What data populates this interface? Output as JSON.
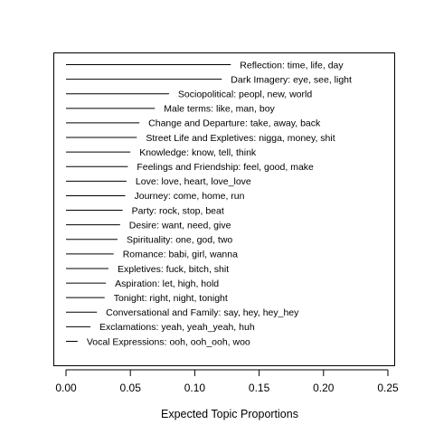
{
  "chart_data": {
    "type": "bar",
    "orientation": "horizontal",
    "xlabel": "Expected Topic Proportions",
    "xlim": [
      0,
      0.25
    ],
    "xticks": [
      "0.00",
      "0.05",
      "0.10",
      "0.15",
      "0.20",
      "0.25"
    ],
    "xtick_values": [
      0,
      0.05,
      0.1,
      0.15,
      0.2,
      0.25
    ],
    "grid": false,
    "series": [
      {
        "labels": [
          "Reflection:  time, life, day",
          "Dark Imagery:  eye, see, light",
          "Sociopolitical:  peopl, new, world",
          "Male terms:  like, man, boy",
          "Change and Departure:  take, away, back",
          "Street Life and Expletives:  nigga, money, shit",
          "Knowledge:  know, tell, think",
          "Feelings and Friendship:  feel, good, make",
          "Love:  love, heart, love_love",
          "Journey:  come, home, run",
          "Party:  rock, stop, beat",
          "Desire:  want, need, give",
          "Spirituality:  one, god, two",
          "Romance:  babi, girl, wanna",
          "Expletives:  fuck, bitch, shit",
          "Aspiration:  let, high, hold",
          "Tonight:  right, night, tonight",
          "Conversational and Family:  say, hey, hey_hey",
          "Exclamations:  yeah, yeah_yeah, huh",
          "Vocal Expressions:  ooh, ooh_ooh, woo"
        ],
        "values": [
          0.128,
          0.121,
          0.08,
          0.069,
          0.057,
          0.055,
          0.05,
          0.048,
          0.047,
          0.046,
          0.044,
          0.042,
          0.04,
          0.037,
          0.033,
          0.031,
          0.03,
          0.024,
          0.019,
          0.009
        ]
      }
    ]
  }
}
